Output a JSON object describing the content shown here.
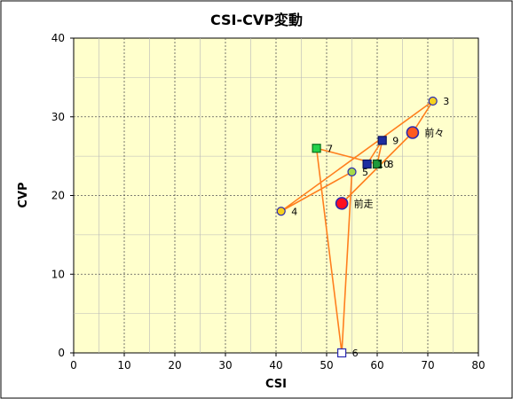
{
  "chart_data": {
    "type": "scatter",
    "title": "CSI-CVP変動",
    "xlabel": "CSI",
    "ylabel": "CVP",
    "xlim": [
      0,
      80
    ],
    "ylim": [
      0,
      40
    ],
    "x_ticks": [
      0,
      10,
      20,
      30,
      40,
      50,
      60,
      70,
      80
    ],
    "y_ticks": [
      0,
      10,
      20,
      30,
      40
    ],
    "grid": true,
    "line_color": "#ff7f1e",
    "plot_background": "#ffffcc",
    "path_order": [
      "10",
      "9",
      "8",
      "7",
      "6",
      "5",
      "4",
      "3",
      "前々",
      "前走"
    ],
    "points": [
      {
        "label": "3",
        "x": 71,
        "y": 32,
        "marker": "circle",
        "fill": "#f5d11e",
        "stroke": "#2a2ab0"
      },
      {
        "label": "前々",
        "x": 67,
        "y": 28,
        "marker": "circle-large",
        "fill": "#ff5a1e",
        "stroke": "#2a2ab0"
      },
      {
        "label": "9",
        "x": 61,
        "y": 27,
        "marker": "square",
        "fill": "#1e2ea0",
        "stroke": "#0c1460"
      },
      {
        "label": "7",
        "x": 48,
        "y": 26,
        "marker": "square",
        "fill": "#22d24a",
        "stroke": "#0a6e1e"
      },
      {
        "label": "10",
        "x": 58,
        "y": 24,
        "marker": "square",
        "fill": "#1e2ea0",
        "stroke": "#0c1460"
      },
      {
        "label": "8",
        "x": 60,
        "y": 24,
        "marker": "square",
        "fill": "#1e9a3a",
        "stroke": "#0a4a1a"
      },
      {
        "label": "5",
        "x": 55,
        "y": 23,
        "marker": "circle",
        "fill": "#a6d94a",
        "stroke": "#2a2ab0"
      },
      {
        "label": "前走",
        "x": 53,
        "y": 19,
        "marker": "circle-large",
        "fill": "#ff1020",
        "stroke": "#2a2ab0"
      },
      {
        "label": "4",
        "x": 41,
        "y": 18,
        "marker": "circle",
        "fill": "#f5d11e",
        "stroke": "#2a2ab0"
      },
      {
        "label": "6",
        "x": 53,
        "y": 0,
        "marker": "square-open",
        "fill": "#ffffff",
        "stroke": "#2a2ab0"
      }
    ]
  }
}
